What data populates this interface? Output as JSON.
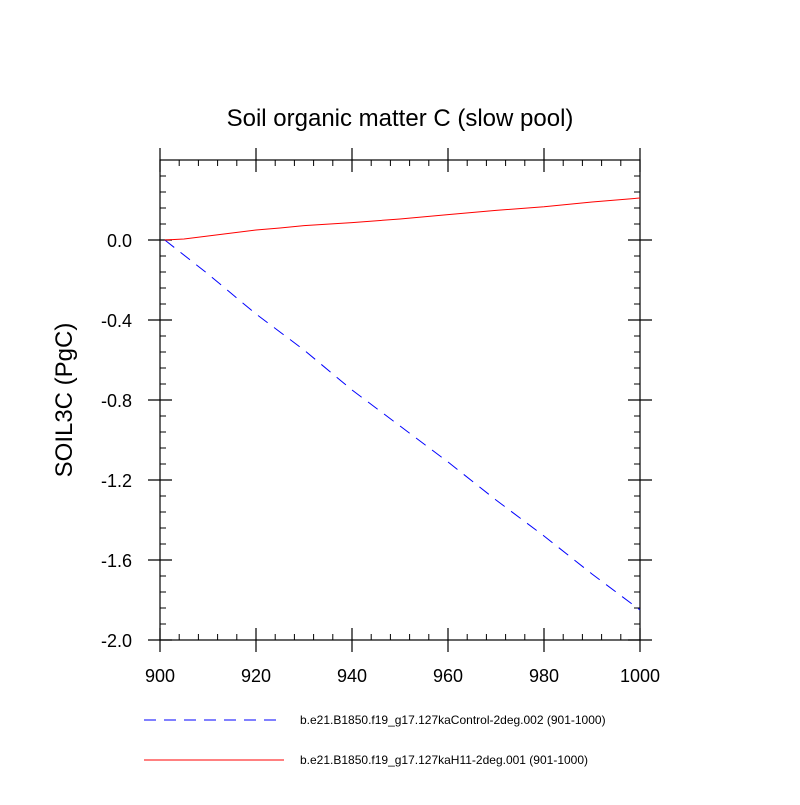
{
  "chart_data": {
    "type": "line",
    "title": "Soil organic matter C (slow pool)",
    "xlabel": "",
    "ylabel": "SOIL3C  (PgC)",
    "xlim": [
      900,
      1000
    ],
    "ylim": [
      -2.0,
      0.4
    ],
    "x_ticks": [
      900,
      920,
      940,
      960,
      980,
      1000
    ],
    "x_tick_labels": [
      "900",
      "920",
      "940",
      "960",
      "980",
      "1000"
    ],
    "y_ticks": [
      0.0,
      -0.4,
      -0.8,
      -1.2,
      -1.6,
      -2.0
    ],
    "y_tick_labels": [
      "0.0",
      "-0.4",
      "-0.8",
      "-1.2",
      "-1.6",
      "-2.0"
    ],
    "x_minor_step": 4,
    "y_minor_step": 0.08,
    "grid": false,
    "legend_position": "bottom",
    "series": [
      {
        "name": "b.e21.B1850.f19_g17.127kaControl-2deg.002 (901-1000)",
        "color": "#0000ff",
        "style": "dashed",
        "x": [
          901,
          910,
          920,
          930,
          940,
          950,
          960,
          970,
          980,
          990,
          1000
        ],
        "values": [
          0.0,
          -0.17,
          -0.37,
          -0.55,
          -0.75,
          -0.93,
          -1.11,
          -1.3,
          -1.48,
          -1.67,
          -1.85
        ]
      },
      {
        "name": "b.e21.B1850.f19_g17.127kaH11-2deg.001 (901-1000)",
        "color": "#ff0000",
        "style": "solid",
        "x": [
          901,
          905,
          910,
          915,
          920,
          925,
          930,
          940,
          950,
          960,
          970,
          980,
          990,
          1000
        ],
        "values": [
          0.0,
          0.005,
          0.02,
          0.035,
          0.05,
          0.06,
          0.072,
          0.087,
          0.105,
          0.127,
          0.148,
          0.166,
          0.19,
          0.21
        ]
      }
    ]
  }
}
